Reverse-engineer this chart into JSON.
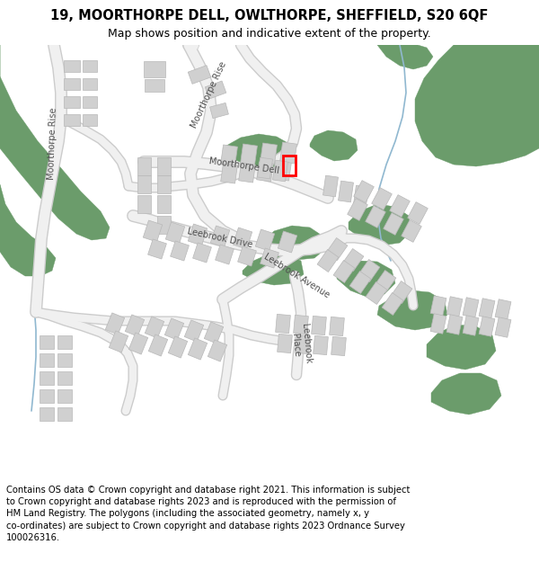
{
  "title": "19, MOORTHORPE DELL, OWLTHORPE, SHEFFIELD, S20 6QF",
  "subtitle": "Map shows position and indicative extent of the property.",
  "footer": "Contains OS data © Crown copyright and database right 2021. This information is subject to Crown copyright and database rights 2023 and is reproduced with the permission of HM Land Registry. The polygons (including the associated geometry, namely x, y co-ordinates) are subject to Crown copyright and database rights 2023 Ordnance Survey 100026316.",
  "bg_color": "#ffffff",
  "green_color": "#6b9c6b",
  "building_color": "#d0d0d0",
  "building_outline": "#b8b8b8",
  "road_fill": "#f5f5f5",
  "road_outline": "#d0d0d0",
  "highlight_color": "#ff0000",
  "water_color": "#a8c8e0",
  "label_color": "#555555",
  "title_fontsize": 10.5,
  "subtitle_fontsize": 9,
  "footer_fontsize": 7.2
}
